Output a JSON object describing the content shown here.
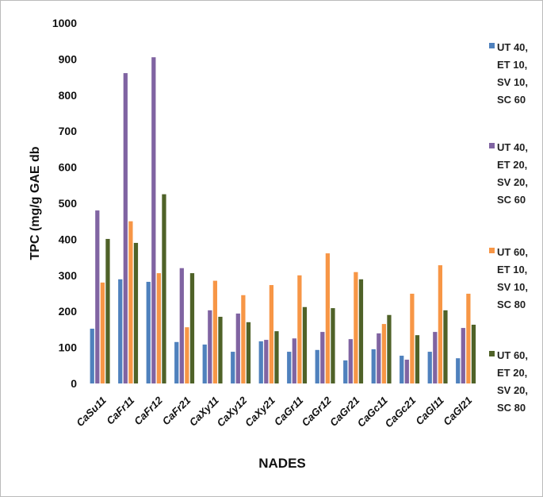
{
  "chart_data": {
    "type": "bar",
    "x_label": "NADES",
    "y_label": "TPC (mg/g GAE db",
    "categories": [
      "CaSu11",
      "CaFr11",
      "CaFr12",
      "CaFr21",
      "CaXy11",
      "CaXy12",
      "CaXy21",
      "CaGr11",
      "CaGr12",
      "CaGr21",
      "CaGc11",
      "CaGc21",
      "CaGl11",
      "CaGl21"
    ],
    "series": [
      {
        "name": "UT 40, ET 10, SV 10, SC 60",
        "color": "#4f81bd",
        "values": [
          152,
          289,
          282,
          115,
          108,
          88,
          117,
          88,
          93,
          64,
          95,
          77,
          88,
          70
        ]
      },
      {
        "name": "UT 40, ET 20, SV 20, SC 60",
        "color": "#8064a2",
        "values": [
          480,
          861,
          905,
          320,
          203,
          194,
          121,
          125,
          143,
          123,
          139,
          66,
          143,
          154
        ]
      },
      {
        "name": "UT 60, ET 10, SV 10, SC 80",
        "color": "#f79646",
        "values": [
          280,
          450,
          306,
          156,
          285,
          245,
          273,
          300,
          361,
          309,
          165,
          249,
          328,
          249
        ]
      },
      {
        "name": "UT 60, ET 20, SV 20, SC 80",
        "color": "#4f6228",
        "values": [
          401,
          390,
          525,
          306,
          185,
          170,
          145,
          212,
          209,
          289,
          190,
          134,
          203,
          163
        ]
      }
    ],
    "ylim": [
      0,
      1000
    ],
    "yticks": [
      0,
      100,
      200,
      300,
      400,
      500,
      600,
      700,
      800,
      900,
      1000
    ],
    "grid": false
  }
}
